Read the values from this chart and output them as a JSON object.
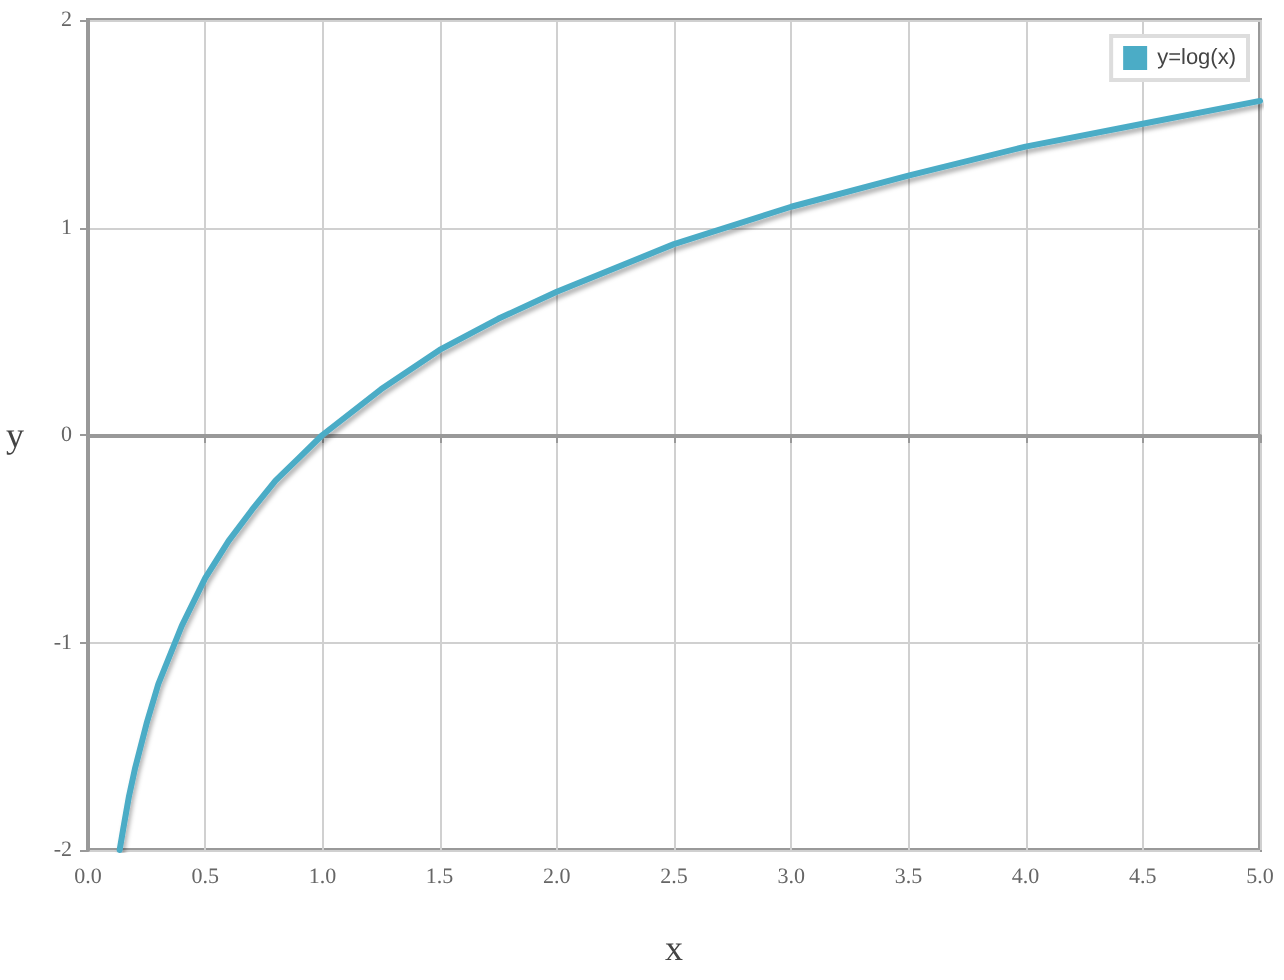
{
  "chart_data": {
    "type": "line",
    "xlabel": "x",
    "ylabel": "y",
    "x": [
      0.135,
      0.15,
      0.175,
      0.2,
      0.25,
      0.3,
      0.4,
      0.5,
      0.6,
      0.7,
      0.8,
      0.9,
      1.0,
      1.25,
      1.5,
      1.75,
      2.0,
      2.5,
      3.0,
      3.5,
      4.0,
      4.5,
      5.0
    ],
    "series": [
      {
        "name": "y=log(x)",
        "color": "#4bacc6",
        "values": [
          -2.0,
          -1.9,
          -1.74,
          -1.61,
          -1.39,
          -1.2,
          -0.92,
          -0.69,
          -0.51,
          -0.36,
          -0.22,
          -0.11,
          0,
          0.22,
          0.41,
          0.56,
          0.69,
          0.92,
          1.1,
          1.25,
          1.39,
          1.5,
          1.61
        ]
      }
    ],
    "xlim": [
      0,
      5
    ],
    "ylim": [
      -2,
      2
    ],
    "xticks": [
      {
        "value": 0,
        "label": "0.0"
      },
      {
        "value": 0.5,
        "label": "0.5"
      },
      {
        "value": 1,
        "label": "1.0"
      },
      {
        "value": 1.5,
        "label": "1.5"
      },
      {
        "value": 2,
        "label": "2.0"
      },
      {
        "value": 2.5,
        "label": "2.5"
      },
      {
        "value": 3,
        "label": "3.0"
      },
      {
        "value": 3.5,
        "label": "3.5"
      },
      {
        "value": 4,
        "label": "4.0"
      },
      {
        "value": 4.5,
        "label": "4.5"
      },
      {
        "value": 5,
        "label": "5.0"
      }
    ],
    "yticks": [
      -2,
      -1,
      0,
      1,
      2
    ],
    "grid": true,
    "legend": "top right",
    "marker": "none",
    "line_style": "solid"
  }
}
